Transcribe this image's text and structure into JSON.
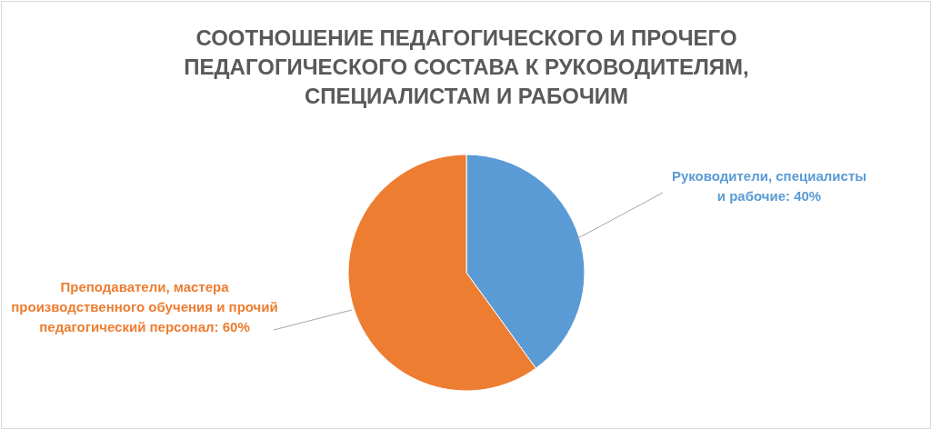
{
  "chart_data": {
    "type": "pie",
    "title": "СООТНОШЕНИЕ ПЕДАГОГИЧЕСКОГО И ПРОЧЕГО ПЕДАГОГИЧЕСКОГО СОСТАВА К РУКОВОДИТЕЛЯМ, СПЕЦИАЛИСТАМ И РАБОЧИМ",
    "categories": [
      "Руководители, специалисты и рабочие",
      "Преподаватели, мастера производственного обучения и прочий педагогический персонал"
    ],
    "values": [
      40,
      60
    ],
    "colors": [
      "#5b9bd5",
      "#ed7d31"
    ],
    "value_labels": [
      "40%",
      "60%"
    ]
  }
}
